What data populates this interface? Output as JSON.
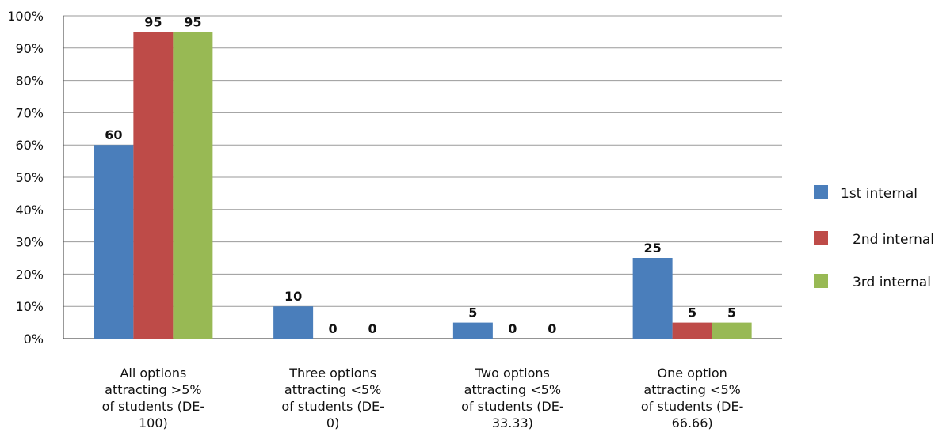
{
  "chart_data": {
    "type": "bar",
    "title": "",
    "xlabel": "",
    "ylabel": "",
    "ylim": [
      0,
      100
    ],
    "y_tick_step": 10,
    "y_tick_format": "percent",
    "grid": true,
    "legend_position": "right",
    "categories": [
      "All options attracting >5% of students (DE-100)",
      "Three options attracting <5% of students (DE-0)",
      "Two options attracting <5% of students (DE-33.33)",
      "One option attracting <5% of students (DE-66.66)"
    ],
    "category_lines": [
      [
        "All options",
        "attracting >5%",
        "of students (DE-",
        "100)"
      ],
      [
        "Three options",
        "attracting <5%",
        "of students (DE-",
        "0)"
      ],
      [
        "Two options",
        "attracting <5%",
        "of students (DE-",
        "33.33)"
      ],
      [
        "One option",
        "attracting <5%",
        "of students (DE-",
        "66.66)"
      ]
    ],
    "series": [
      {
        "name": "1st internal",
        "color": "#4a7ebb",
        "values": [
          60,
          10,
          5,
          25
        ]
      },
      {
        "name": "2nd internal",
        "color": "#be4b48",
        "values": [
          95,
          0,
          0,
          5
        ]
      },
      {
        "name": "3rd internal",
        "color": "#98b954",
        "values": [
          95,
          0,
          0,
          5
        ]
      }
    ],
    "data_labels": true
  }
}
